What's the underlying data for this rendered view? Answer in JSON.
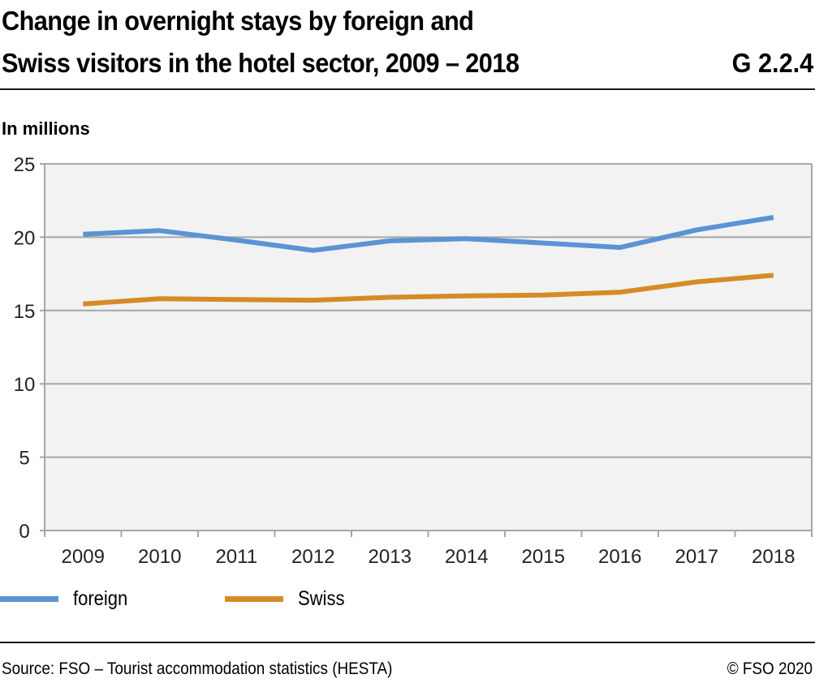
{
  "header": {
    "title_line1": "Change in overnight stays by foreign and",
    "title_line2": "Swiss visitors in the hotel sector, 2009 – 2018",
    "code": "G 2.2.4"
  },
  "footer": {
    "source": "Source: FSO – Tourist accommodation statistics (HESTA)",
    "copyright": "© FSO 2020"
  },
  "chart_data": {
    "type": "line",
    "title": "Change in overnight stays by foreign and Swiss visitors in the hotel sector, 2009 – 2018",
    "ylabel": "In millions",
    "xlabel": "",
    "categories": [
      "2009",
      "2010",
      "2011",
      "2012",
      "2013",
      "2014",
      "2015",
      "2016",
      "2017",
      "2018"
    ],
    "ylim": [
      0,
      25
    ],
    "yticks": [
      "0",
      "5",
      "10",
      "15",
      "20",
      "25"
    ],
    "grid": true,
    "legend_position": "bottom-left",
    "series": [
      {
        "name": "foreign",
        "color": "#5B93D3",
        "values": [
          20.2,
          20.45,
          19.8,
          19.1,
          19.75,
          19.9,
          19.6,
          19.3,
          20.5,
          21.35
        ]
      },
      {
        "name": "Swiss",
        "color": "#D68B27",
        "values": [
          15.45,
          15.8,
          15.75,
          15.7,
          15.9,
          16.0,
          16.05,
          16.25,
          16.95,
          17.4
        ]
      }
    ],
    "colors": {
      "plot_background": "#F2F2F2",
      "gridline": "#A6A6A6"
    }
  }
}
